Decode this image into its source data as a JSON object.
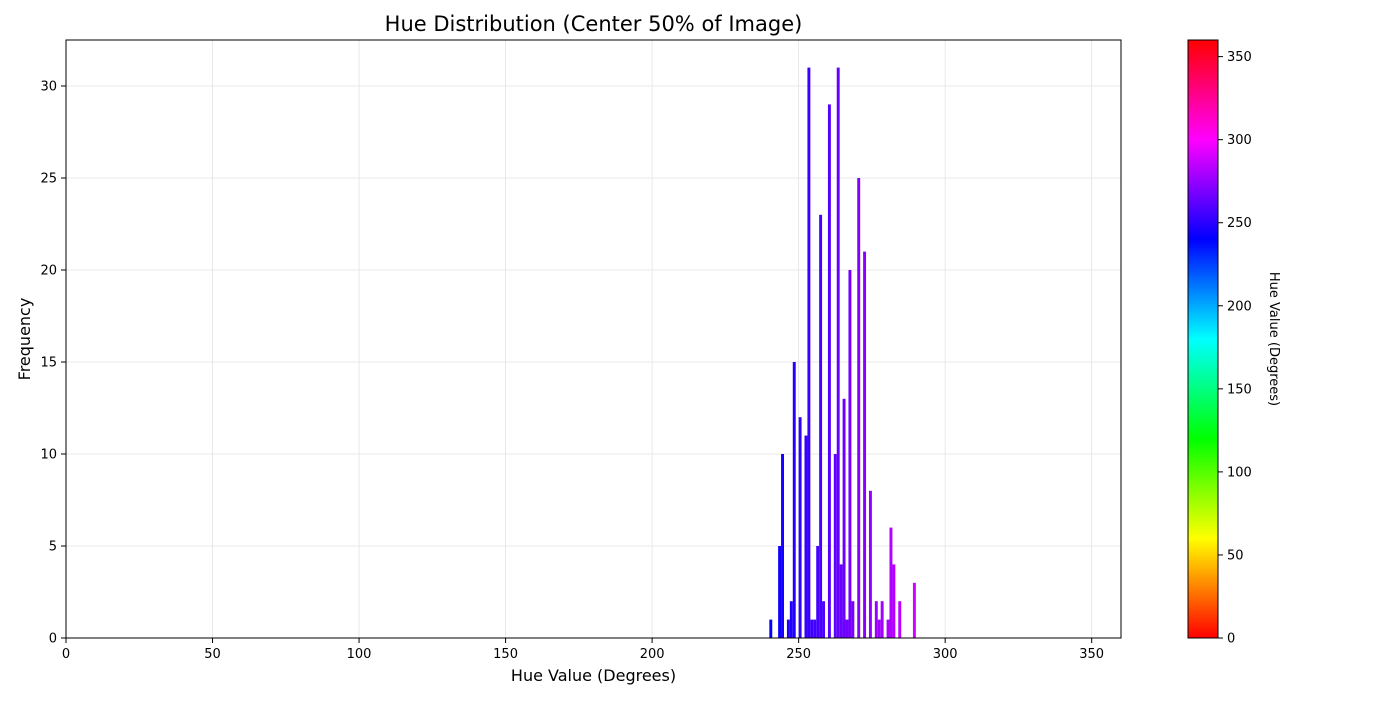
{
  "chart_data": {
    "type": "bar",
    "title": "Hue Distribution (Center 50% of Image)",
    "xlabel": "Hue Value (Degrees)",
    "ylabel": "Frequency",
    "xlim": [
      0,
      360
    ],
    "ylim": [
      0,
      32.5
    ],
    "xticks": [
      0,
      50,
      100,
      150,
      200,
      250,
      300,
      350
    ],
    "yticks": [
      0,
      5,
      10,
      15,
      20,
      25,
      30
    ],
    "grid": true,
    "bin_width": 1,
    "bins": [
      {
        "x": 240,
        "y": 1
      },
      {
        "x": 243,
        "y": 5
      },
      {
        "x": 244,
        "y": 10
      },
      {
        "x": 246,
        "y": 1
      },
      {
        "x": 247,
        "y": 2
      },
      {
        "x": 248,
        "y": 15
      },
      {
        "x": 250,
        "y": 12
      },
      {
        "x": 252,
        "y": 11
      },
      {
        "x": 253,
        "y": 31
      },
      {
        "x": 254,
        "y": 1
      },
      {
        "x": 255,
        "y": 1
      },
      {
        "x": 256,
        "y": 5
      },
      {
        "x": 257,
        "y": 23
      },
      {
        "x": 258,
        "y": 2
      },
      {
        "x": 260,
        "y": 29
      },
      {
        "x": 262,
        "y": 10
      },
      {
        "x": 263,
        "y": 31
      },
      {
        "x": 264,
        "y": 4
      },
      {
        "x": 265,
        "y": 13
      },
      {
        "x": 266,
        "y": 1
      },
      {
        "x": 267,
        "y": 20
      },
      {
        "x": 268,
        "y": 2
      },
      {
        "x": 270,
        "y": 25
      },
      {
        "x": 272,
        "y": 21
      },
      {
        "x": 274,
        "y": 8
      },
      {
        "x": 276,
        "y": 2
      },
      {
        "x": 277,
        "y": 1
      },
      {
        "x": 278,
        "y": 2
      },
      {
        "x": 280,
        "y": 1
      },
      {
        "x": 281,
        "y": 6
      },
      {
        "x": 282,
        "y": 4
      },
      {
        "x": 284,
        "y": 2
      },
      {
        "x": 289,
        "y": 3
      }
    ],
    "colorbar": {
      "label": "Hue Value (Degrees)",
      "range": [
        0,
        360
      ],
      "ticks": [
        0,
        50,
        100,
        150,
        200,
        250,
        300,
        350
      ],
      "colormap": "hsv"
    }
  }
}
